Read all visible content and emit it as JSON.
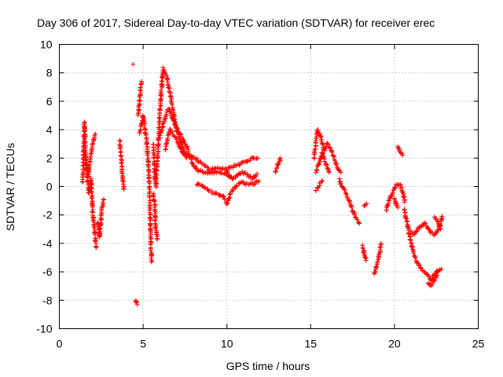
{
  "chart_data": {
    "type": "scatter",
    "title": "Day 306 of 2017, Sidereal Day-to-day VTEC variation (SDTVAR) for receiver erec",
    "xlabel": "GPS time / hours",
    "ylabel": "SDTVAR / TECUs",
    "xlim": [
      0,
      25
    ],
    "ylim": [
      -10,
      10
    ],
    "xticks": [
      "0",
      "5",
      "10",
      "15",
      "20",
      "25"
    ],
    "yticks": [
      "-10",
      "-8",
      "-6",
      "-4",
      "-2",
      "0",
      "2",
      "4",
      "6",
      "8",
      "10"
    ],
    "grid": true,
    "marker": "plus",
    "color": "#ff0000",
    "series": [
      {
        "name": "SDTVAR",
        "segments": [
          [
            [
              1.4,
              0.3
            ],
            [
              1.5,
              4.5
            ],
            [
              1.6,
              1.5
            ],
            [
              1.75,
              -0.5
            ],
            [
              1.9,
              0.5
            ],
            [
              2.0,
              -2.0
            ],
            [
              2.1,
              -3.0
            ],
            [
              2.2,
              -4.3
            ]
          ],
          [
            [
              1.5,
              2.3
            ],
            [
              1.75,
              0.8
            ],
            [
              1.95,
              2.8
            ],
            [
              2.15,
              3.7
            ]
          ],
          [
            [
              2.3,
              -2.5
            ],
            [
              2.4,
              -3.6
            ],
            [
              2.55,
              -1.5
            ],
            [
              2.65,
              -0.9
            ]
          ],
          [
            [
              3.6,
              3.2
            ],
            [
              3.75,
              1.2
            ],
            [
              3.85,
              -0.2
            ]
          ],
          [
            [
              4.4,
              8.6
            ]
          ],
          [
            [
              4.55,
              -8.0
            ],
            [
              4.65,
              -8.3
            ]
          ],
          [
            [
              4.7,
              5.0
            ],
            [
              4.9,
              7.4
            ]
          ],
          [
            [
              4.8,
              3.8
            ],
            [
              5.0,
              5.0
            ],
            [
              5.2,
              3.3
            ],
            [
              5.35,
              1.0
            ],
            [
              5.4,
              -1.0
            ],
            [
              5.45,
              -3.5
            ],
            [
              5.5,
              -5.3
            ]
          ],
          [
            [
              5.6,
              -0.5
            ],
            [
              5.7,
              -1.3
            ],
            [
              5.75,
              -3.0
            ],
            [
              5.85,
              -3.7
            ]
          ],
          [
            [
              5.6,
              3.0
            ],
            [
              5.75,
              0.0
            ],
            [
              5.9,
              3.0
            ],
            [
              6.0,
              5.0
            ],
            [
              6.1,
              7.0
            ],
            [
              6.2,
              8.3
            ],
            [
              6.4,
              7.8
            ],
            [
              6.7,
              6.0
            ],
            [
              7.0,
              4.0
            ],
            [
              7.3,
              3.0
            ],
            [
              7.6,
              2.0
            ]
          ],
          [
            [
              6.3,
              2.6
            ],
            [
              6.6,
              4.0
            ],
            [
              7.0,
              3.3
            ],
            [
              7.4,
              2.3
            ],
            [
              7.8,
              2.2
            ],
            [
              8.2,
              1.9
            ],
            [
              8.6,
              1.5
            ],
            [
              9.0,
              1.2
            ],
            [
              9.5,
              1.3
            ],
            [
              10.0,
              1.2
            ],
            [
              10.5,
              1.5
            ],
            [
              11.0,
              1.7
            ],
            [
              11.5,
              2.0
            ],
            [
              11.85,
              2.0
            ]
          ],
          [
            [
              6.0,
              3.5
            ],
            [
              6.5,
              5.5
            ],
            [
              6.9,
              4.4
            ],
            [
              7.3,
              3.5
            ],
            [
              7.7,
              2.5
            ],
            [
              8.0,
              1.5
            ],
            [
              8.3,
              1.1
            ],
            [
              8.8,
              1.0
            ],
            [
              9.4,
              1.0
            ],
            [
              9.8,
              0.9
            ],
            [
              10.2,
              0.7
            ]
          ],
          [
            [
              8.2,
              0.2
            ],
            [
              8.6,
              0.0
            ],
            [
              9.0,
              -0.3
            ],
            [
              9.4,
              -0.5
            ],
            [
              9.8,
              -0.7
            ],
            [
              10.0,
              -1.2
            ],
            [
              10.2,
              -0.5
            ],
            [
              10.5,
              0.0
            ],
            [
              10.8,
              0.3
            ],
            [
              11.2,
              0.2
            ],
            [
              11.6,
              0.2
            ],
            [
              11.9,
              0.4
            ]
          ],
          [
            [
              10.0,
              1.0
            ],
            [
              10.3,
              0.5
            ],
            [
              10.6,
              0.8
            ],
            [
              10.9,
              1.0
            ],
            [
              11.2,
              0.9
            ],
            [
              11.5,
              0.5
            ],
            [
              11.8,
              0.9
            ]
          ],
          [
            [
              12.9,
              1.0
            ],
            [
              13.05,
              1.6
            ],
            [
              13.2,
              2.0
            ]
          ],
          [
            [
              15.2,
              2.0
            ],
            [
              15.4,
              4.0
            ],
            [
              15.6,
              3.5
            ],
            [
              15.8,
              2.5
            ],
            [
              16.0,
              3.0
            ],
            [
              16.2,
              2.6
            ],
            [
              16.4,
              2.0
            ],
            [
              16.6,
              1.3
            ],
            [
              16.8,
              1.0
            ]
          ],
          [
            [
              15.3,
              1.0
            ],
            [
              15.5,
              1.6
            ],
            [
              15.7,
              2.4
            ],
            [
              15.9,
              1.6
            ],
            [
              16.1,
              1.0
            ]
          ],
          [
            [
              15.3,
              -0.3
            ],
            [
              15.5,
              0.1
            ],
            [
              15.7,
              0.4
            ]
          ],
          [
            [
              16.7,
              0.5
            ],
            [
              16.9,
              0.0
            ],
            [
              17.1,
              -0.5
            ],
            [
              17.3,
              -1.0
            ],
            [
              17.5,
              -1.7
            ],
            [
              17.7,
              -2.2
            ],
            [
              17.9,
              -2.6
            ]
          ],
          [
            [
              18.2,
              -1.3
            ],
            [
              18.35,
              -1.2
            ]
          ],
          [
            [
              18.1,
              -4.2
            ],
            [
              18.2,
              -4.8
            ],
            [
              18.3,
              -5.2
            ]
          ],
          [
            [
              18.8,
              -6.2
            ],
            [
              18.95,
              -5.5
            ],
            [
              19.1,
              -4.8
            ],
            [
              19.2,
              -4.0
            ]
          ],
          [
            [
              19.5,
              -1.7
            ],
            [
              19.7,
              -1.0
            ],
            [
              19.9,
              -0.4
            ],
            [
              20.1,
              0.1
            ],
            [
              20.3,
              0.2
            ],
            [
              20.5,
              -0.3
            ],
            [
              20.6,
              -1.1
            ]
          ],
          [
            [
              20.0,
              -0.8
            ],
            [
              20.1,
              -1.2
            ],
            [
              20.2,
              -1.5
            ]
          ],
          [
            [
              20.2,
              2.8
            ],
            [
              20.35,
              2.4
            ],
            [
              20.5,
              2.2
            ]
          ],
          [
            [
              20.6,
              -1.6
            ],
            [
              20.7,
              -2.2
            ],
            [
              20.8,
              -2.8
            ],
            [
              20.9,
              -3.5
            ],
            [
              21.0,
              -4.0
            ],
            [
              21.2,
              -4.9
            ],
            [
              21.4,
              -5.4
            ],
            [
              21.7,
              -5.9
            ],
            [
              22.0,
              -6.2
            ],
            [
              22.2,
              -6.6
            ],
            [
              22.4,
              -6.1
            ],
            [
              22.6,
              -5.9
            ],
            [
              22.8,
              -5.8
            ]
          ],
          [
            [
              21.0,
              -3.2
            ],
            [
              21.2,
              -3.4
            ],
            [
              21.4,
              -3.0
            ],
            [
              21.6,
              -2.8
            ],
            [
              21.8,
              -2.6
            ],
            [
              22.0,
              -2.9
            ],
            [
              22.2,
              -3.3
            ],
            [
              22.4,
              -3.4
            ],
            [
              22.6,
              -3.0
            ],
            [
              22.75,
              -2.6
            ],
            [
              22.85,
              -2.1
            ]
          ],
          [
            [
              22.0,
              -6.8
            ],
            [
              22.2,
              -7.0
            ],
            [
              22.4,
              -6.5
            ],
            [
              22.6,
              -6.0
            ]
          ],
          [
            [
              22.4,
              -2.2
            ],
            [
              22.6,
              -2.5
            ],
            [
              22.75,
              -3.0
            ]
          ]
        ]
      }
    ]
  }
}
